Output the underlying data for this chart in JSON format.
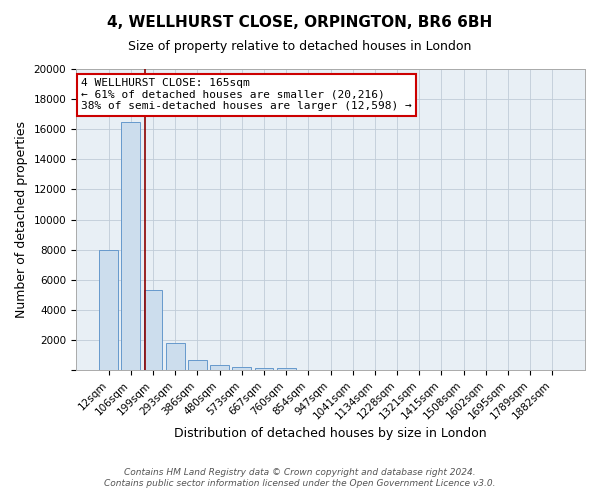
{
  "title": "4, WELLHURST CLOSE, ORPINGTON, BR6 6BH",
  "subtitle": "Size of property relative to detached houses in London",
  "xlabel": "Distribution of detached houses by size in London",
  "ylabel": "Number of detached properties",
  "footnote1": "Contains HM Land Registry data © Crown copyright and database right 2024.",
  "footnote2": "Contains public sector information licensed under the Open Government Licence v3.0.",
  "bin_labels": [
    "12sqm",
    "106sqm",
    "199sqm",
    "293sqm",
    "386sqm",
    "480sqm",
    "573sqm",
    "667sqm",
    "760sqm",
    "854sqm",
    "947sqm",
    "1041sqm",
    "1134sqm",
    "1228sqm",
    "1321sqm",
    "1415sqm",
    "1508sqm",
    "1602sqm",
    "1695sqm",
    "1789sqm",
    "1882sqm"
  ],
  "bar_values": [
    8000,
    16500,
    5300,
    1800,
    700,
    350,
    200,
    150,
    150,
    0,
    0,
    0,
    0,
    0,
    0,
    0,
    0,
    0,
    0,
    0,
    0
  ],
  "bar_color": "#ccdded",
  "bar_edgecolor": "#6699cc",
  "ylim": [
    0,
    20000
  ],
  "yticks": [
    0,
    2000,
    4000,
    6000,
    8000,
    10000,
    12000,
    14000,
    16000,
    18000,
    20000
  ],
  "annotation_line1": "4 WELLHURST CLOSE: 165sqm",
  "annotation_line2": "← 61% of detached houses are smaller (20,216)",
  "annotation_line3": "38% of semi-detached houses are larger (12,598) →",
  "annotation_box_edgecolor": "#cc0000",
  "red_line_index": 1.63,
  "background_color": "#e8eff5",
  "grid_color": "#c0ccd8",
  "title_fontsize": 11,
  "subtitle_fontsize": 9,
  "axis_label_fontsize": 9,
  "tick_fontsize": 7.5,
  "annotation_fontsize": 8
}
